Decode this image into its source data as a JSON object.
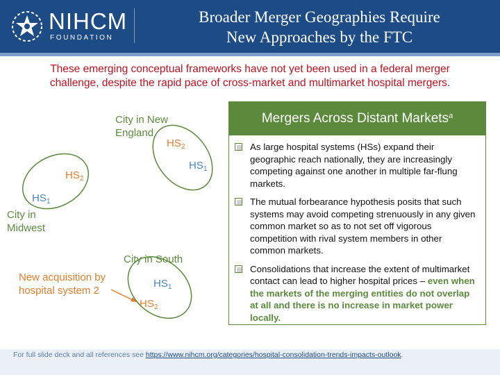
{
  "header": {
    "logo_name": "NIHCM",
    "logo_sub": "FOUNDATION",
    "title_line1": "Broader Merger Geographies Require",
    "title_line2": "New Approaches by the FTC"
  },
  "subtitle": "These emerging conceptual frameworks have not yet been used in a federal merger challenge, despite the rapid pace of cross-market and multimarket hospital mergers.",
  "diagram": {
    "ne_label_1": "City in New",
    "ne_label_2": "England",
    "mw_label_1": "City in",
    "mw_label_2": "Midwest",
    "south_label": "City in South",
    "acq_label_1": "New acquisition by",
    "acq_label_2": "hospital system 2",
    "hs_prefix": "HS",
    "sub1": "1",
    "sub2": "2"
  },
  "panel": {
    "title": "Mergers Across Distant Markets",
    "title_sup": "a",
    "bullet1": "As large hospital systems (HSs) expand their geographic reach nationally, they are increasingly competing against one another in multiple far-flung markets.",
    "bullet2": "The mutual forbearance hypothesis posits that such systems may avoid competing strenuously in any given common market so as to not set off vigorous competition with rival system members in other common markets.",
    "bullet3_plain": "Consolidations that increase the extent of multimarket contact can lead to higher hospital prices – ",
    "bullet3_emph": "even when the markets of the merging entities do not overlap at all and there is no increase in market power locally."
  },
  "footer": {
    "text": "For full slide deck and all references see ",
    "link": "https://www.nihcm.org/categories/hospital-consolidation-trends-impacts-outlook",
    "end": "."
  },
  "colors": {
    "header_blue": "#1c4b86",
    "green": "#5b8a3c",
    "orange": "#e37d2b",
    "blue": "#4a86c5",
    "red": "#c0111f"
  }
}
